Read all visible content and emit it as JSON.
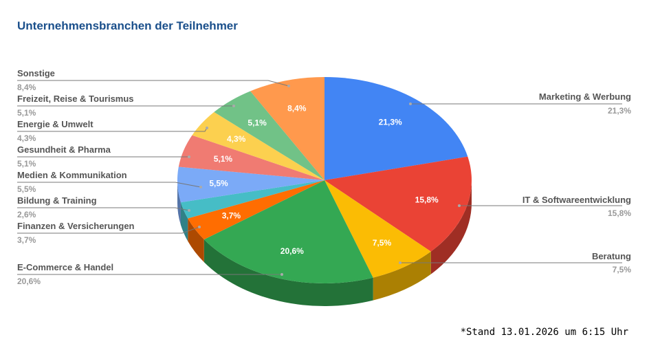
{
  "chart_data": {
    "type": "pie",
    "style": "3d",
    "title": "Unternehmensbranchen der Teilnehmer",
    "categories": [
      "Marketing & Werbung",
      "IT & Softwareentwicklung",
      "Beratung",
      "E-Commerce & Handel",
      "Finanzen & Versicherungen",
      "Bildung & Training",
      "Medien & Kommunikation",
      "Gesundheit & Pharma",
      "Energie & Umwelt",
      "Freizeit, Reise & Tourismus",
      "Sonstige"
    ],
    "values": [
      21.3,
      15.8,
      7.5,
      20.6,
      3.7,
      2.6,
      5.5,
      5.1,
      4.3,
      5.1,
      8.4
    ],
    "value_labels": [
      "21,3%",
      "15,8%",
      "7,5%",
      "20,6%",
      "3,7%",
      "2,6%",
      "5,5%",
      "5,1%",
      "4,3%",
      "5,1%",
      "8,4%"
    ],
    "colors": [
      "#4285f4",
      "#ea4335",
      "#fbbc04",
      "#34a853",
      "#ff6d01",
      "#46bdc6",
      "#7baaf7",
      "#f07b72",
      "#fcd04f",
      "#71c287",
      "#ff994d"
    ],
    "legend_placement": "labels-around"
  },
  "footnote": "*Stand 13.01.2026 um 6:15 Uhr"
}
